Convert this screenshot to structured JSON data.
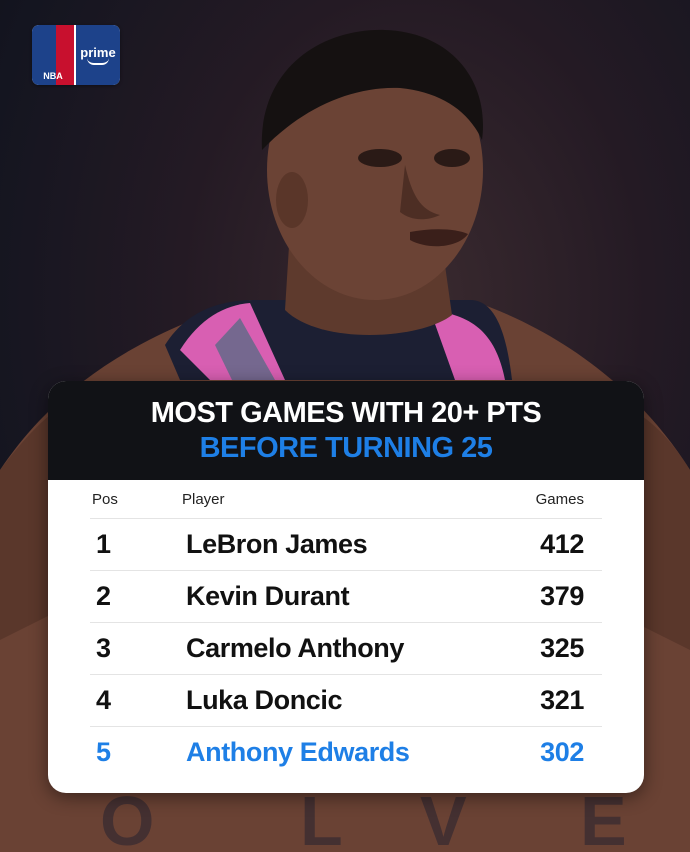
{
  "logo": {
    "league": "NBA",
    "partner": "prime"
  },
  "title": {
    "line1": "MOST GAMES WITH 20+ PTS",
    "line2": "BEFORE TURNING 25"
  },
  "table": {
    "headers": {
      "pos": "Pos",
      "player": "Player",
      "games": "Games"
    },
    "rows": [
      {
        "pos": "1",
        "player": "LeBron James",
        "games": "412"
      },
      {
        "pos": "2",
        "player": "Kevin Durant",
        "games": "379"
      },
      {
        "pos": "3",
        "player": "Carmelo Anthony",
        "games": "325"
      },
      {
        "pos": "4",
        "player": "Luka Doncic",
        "games": "321"
      },
      {
        "pos": "5",
        "player": "Anthony Edwards",
        "games": "302"
      }
    ],
    "highlight_color": "#1e7fe6"
  }
}
